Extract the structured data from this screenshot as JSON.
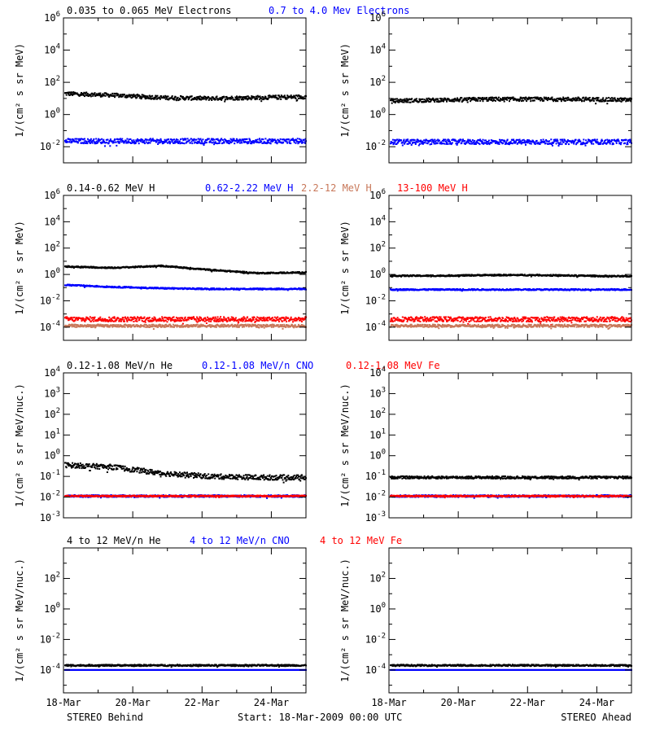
{
  "colors": {
    "black": "#000000",
    "blue": "#0000ff",
    "red": "#ff0000",
    "tan": "#c8785a"
  },
  "footer": {
    "left": "STEREO Behind",
    "center": "Start: 18-Mar-2009 00:00 UTC",
    "right": "STEREO Ahead"
  },
  "x_ticks": [
    "18-Mar",
    "20-Mar",
    "22-Mar",
    "24-Mar"
  ],
  "chart_data": [
    {
      "type": "scatter",
      "row": 0,
      "legend": [
        {
          "text": "0.035 to 0.065 MeV Electrons",
          "color": "black"
        },
        {
          "text": "0.7 to 4.0 Mev Electrons",
          "color": "blue"
        }
      ],
      "ylabel": "1/(cm² s sr MeV)",
      "y_log_range": [
        -3,
        6
      ],
      "y_ticks": [
        {
          "exp": -2,
          "base": "10",
          "sup": "-2"
        },
        {
          "exp": 0,
          "base": "10",
          "sup": "0"
        },
        {
          "exp": 2,
          "base": "10",
          "sup": "2"
        },
        {
          "exp": 4,
          "base": "10",
          "sup": "4"
        },
        {
          "exp": 6,
          "base": "10",
          "sup": "6"
        }
      ],
      "panels": [
        {
          "side": "behind",
          "series": [
            {
              "name": "0.035 to 0.065 MeV Electrons",
              "color": "black",
              "level": [
                1.3,
                1.2,
                1.05,
                1.0,
                1.05,
                1.1
              ],
              "noise": 0.12
            },
            {
              "name": "0.7 to 4.0 Mev Electrons",
              "color": "blue",
              "level": [
                -1.65,
                -1.65,
                -1.65,
                -1.65,
                -1.65,
                -1.65
              ],
              "noise": 0.15
            }
          ]
        },
        {
          "side": "ahead",
          "series": [
            {
              "name": "0.035 to 0.065 MeV Electrons",
              "color": "black",
              "level": [
                0.85,
                0.9,
                0.95,
                0.95,
                0.95,
                0.9
              ],
              "noise": 0.12
            },
            {
              "name": "0.7 to 4.0 Mev Electrons",
              "color": "blue",
              "level": [
                -1.7,
                -1.7,
                -1.7,
                -1.7,
                -1.7,
                -1.7
              ],
              "noise": 0.15
            }
          ]
        }
      ]
    },
    {
      "type": "scatter",
      "row": 1,
      "legend": [
        {
          "text": "0.14-0.62 MeV H",
          "color": "black"
        },
        {
          "text": "0.62-2.22 MeV H",
          "color": "blue"
        },
        {
          "text": "2.2-12 MeV H",
          "color": "tan"
        },
        {
          "text": "13-100 MeV H",
          "color": "red"
        }
      ],
      "ylabel": "1/(cm² s sr MeV)",
      "y_log_range": [
        -5,
        6
      ],
      "y_ticks": [
        {
          "exp": -4,
          "base": "10",
          "sup": "-4"
        },
        {
          "exp": -2,
          "base": "10",
          "sup": "-2"
        },
        {
          "exp": 0,
          "base": "10",
          "sup": "0"
        },
        {
          "exp": 2,
          "base": "10",
          "sup": "2"
        },
        {
          "exp": 4,
          "base": "10",
          "sup": "4"
        },
        {
          "exp": 6,
          "base": "10",
          "sup": "6"
        }
      ],
      "panels": [
        {
          "side": "behind",
          "series": [
            {
              "name": "0.14-0.62 MeV H",
              "color": "black",
              "level": [
                0.6,
                0.5,
                0.65,
                0.35,
                0.1,
                0.15
              ],
              "noise": 0.05
            },
            {
              "name": "0.62-2.22 MeV H",
              "color": "blue",
              "level": [
                -0.8,
                -0.95,
                -1.05,
                -1.1,
                -1.1,
                -1.1
              ],
              "noise": 0.05
            },
            {
              "name": "13-100 MeV H",
              "color": "red",
              "level": [
                -3.4,
                -3.4,
                -3.4,
                -3.4,
                -3.4,
                -3.4
              ],
              "noise": 0.18
            },
            {
              "name": "2.2-12 MeV H",
              "color": "tan",
              "level": [
                -3.9,
                -3.9,
                -3.9,
                -3.9,
                -3.9,
                -3.9
              ],
              "noise": 0.1
            }
          ]
        },
        {
          "side": "ahead",
          "series": [
            {
              "name": "0.14-0.62 MeV H",
              "color": "black",
              "level": [
                -0.1,
                -0.1,
                -0.05,
                -0.05,
                -0.1,
                -0.15
              ],
              "noise": 0.05
            },
            {
              "name": "0.62-2.22 MeV H",
              "color": "blue",
              "level": [
                -1.15,
                -1.15,
                -1.15,
                -1.15,
                -1.15,
                -1.15
              ],
              "noise": 0.05
            },
            {
              "name": "13-100 MeV H",
              "color": "red",
              "level": [
                -3.4,
                -3.4,
                -3.4,
                -3.4,
                -3.4,
                -3.4
              ],
              "noise": 0.18
            },
            {
              "name": "2.2-12 MeV H",
              "color": "tan",
              "level": [
                -3.9,
                -3.9,
                -3.9,
                -3.9,
                -3.9,
                -3.9
              ],
              "noise": 0.1
            }
          ]
        }
      ]
    },
    {
      "type": "scatter",
      "row": 2,
      "legend": [
        {
          "text": "0.12-1.08 MeV/n He",
          "color": "black"
        },
        {
          "text": "0.12-1.08 MeV/n CNO",
          "color": "blue"
        },
        {
          "text": "0.12-1.08 MeV Fe",
          "color": "red"
        }
      ],
      "ylabel": "1/(cm² s sr MeV/nuc.)",
      "y_log_range": [
        -3,
        4
      ],
      "y_ticks": [
        {
          "exp": -3,
          "base": "10",
          "sup": "-3"
        },
        {
          "exp": -2,
          "base": "10",
          "sup": "-2"
        },
        {
          "exp": -1,
          "base": "10",
          "sup": "-1"
        },
        {
          "exp": 0,
          "base": "10",
          "sup": "0"
        },
        {
          "exp": 1,
          "base": "10",
          "sup": "1"
        },
        {
          "exp": 2,
          "base": "10",
          "sup": "2"
        },
        {
          "exp": 3,
          "base": "10",
          "sup": "3"
        },
        {
          "exp": 4,
          "base": "10",
          "sup": "4"
        }
      ],
      "panels": [
        {
          "side": "behind",
          "series": [
            {
              "name": "0.12-1.08 MeV/n He",
              "color": "black",
              "level": [
                -0.45,
                -0.55,
                -0.85,
                -1.0,
                -1.05,
                -1.05
              ],
              "noise": 0.12
            },
            {
              "name": "0.12-1.08 MeV/n CNO",
              "color": "blue",
              "level": [
                -1.95,
                -1.95,
                -1.95,
                -1.95,
                -1.95,
                -1.95
              ],
              "noise": 0.05
            },
            {
              "name": "0.12-1.08 MeV Fe",
              "color": "red",
              "level": [
                -1.95,
                -1.95,
                -1.95,
                -1.95,
                -1.95,
                -1.95
              ],
              "noise": 0.03
            }
          ]
        },
        {
          "side": "ahead",
          "series": [
            {
              "name": "0.12-1.08 MeV/n He",
              "color": "black",
              "level": [
                -1.05,
                -1.05,
                -1.05,
                -1.05,
                -1.05,
                -1.05
              ],
              "noise": 0.06
            },
            {
              "name": "0.12-1.08 MeV/n CNO",
              "color": "blue",
              "level": [
                -1.95,
                -1.95,
                -1.95,
                -1.95,
                -1.95,
                -1.95
              ],
              "noise": 0.05
            },
            {
              "name": "0.12-1.08 MeV Fe",
              "color": "red",
              "level": [
                -1.95,
                -1.95,
                -1.95,
                -1.95,
                -1.95,
                -1.95
              ],
              "noise": 0.03
            }
          ]
        }
      ]
    },
    {
      "type": "scatter",
      "row": 3,
      "legend": [
        {
          "text": "4 to 12 MeV/n He",
          "color": "black"
        },
        {
          "text": "4 to 12 MeV/n CNO",
          "color": "blue"
        },
        {
          "text": "4 to 12 MeV Fe",
          "color": "red"
        }
      ],
      "ylabel": "1/(cm² s sr MeV/nuc.)",
      "y_log_range": [
        -5.5,
        4
      ],
      "y_ticks": [
        {
          "exp": -4,
          "base": "10",
          "sup": "-4"
        },
        {
          "exp": -2,
          "base": "10",
          "sup": "-2"
        },
        {
          "exp": 0,
          "base": "10",
          "sup": "0"
        },
        {
          "exp": 2,
          "base": "10",
          "sup": "2"
        }
      ],
      "panels": [
        {
          "side": "behind",
          "series": [
            {
              "name": "4 to 12 MeV/n He",
              "color": "black",
              "level": [
                -3.7,
                -3.7,
                -3.7,
                -3.7,
                -3.7,
                -3.7
              ],
              "noise": 0.05
            },
            {
              "name": "4 to 12 MeV/n CNO",
              "color": "blue",
              "level": [
                -4.0,
                -4.0,
                -4.0,
                -4.0,
                -4.0,
                -4.0
              ],
              "noise": 0.0
            }
          ]
        },
        {
          "side": "ahead",
          "series": [
            {
              "name": "4 to 12 MeV/n He",
              "color": "black",
              "level": [
                -3.7,
                -3.7,
                -3.7,
                -3.7,
                -3.7,
                -3.7
              ],
              "noise": 0.05
            },
            {
              "name": "4 to 12 MeV/n CNO",
              "color": "blue",
              "level": [
                -4.0,
                -4.0,
                -4.0,
                -4.0,
                -4.0,
                -4.0
              ],
              "noise": 0.0
            }
          ]
        }
      ]
    }
  ]
}
